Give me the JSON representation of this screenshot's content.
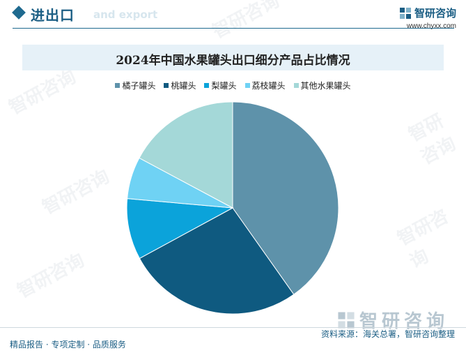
{
  "header": {
    "section_title": "进出口",
    "section_subtitle": "and export",
    "brand_name": "智研咨询",
    "brand_url": "www.chyxx.com"
  },
  "watermark_text": "智研咨询",
  "footer": {
    "source": "资料来源：海关总署，智研咨询整理",
    "slogan": "精品报告 · 专项定制 · 品质服务"
  },
  "chart_data": {
    "type": "pie",
    "title": "2024年中国水果罐头出口细分产品占比情况",
    "legend_position": "top",
    "categories": [
      "橘子罐头",
      "桃罐头",
      "梨罐头",
      "荔枝罐头",
      "其他水果罐头"
    ],
    "values": [
      40.2,
      26.9,
      9.3,
      6.4,
      17.2
    ],
    "colors": [
      "#5e92aa",
      "#0f5a80",
      "#0ba3da",
      "#6fd2f4",
      "#a4d8d8"
    ]
  }
}
